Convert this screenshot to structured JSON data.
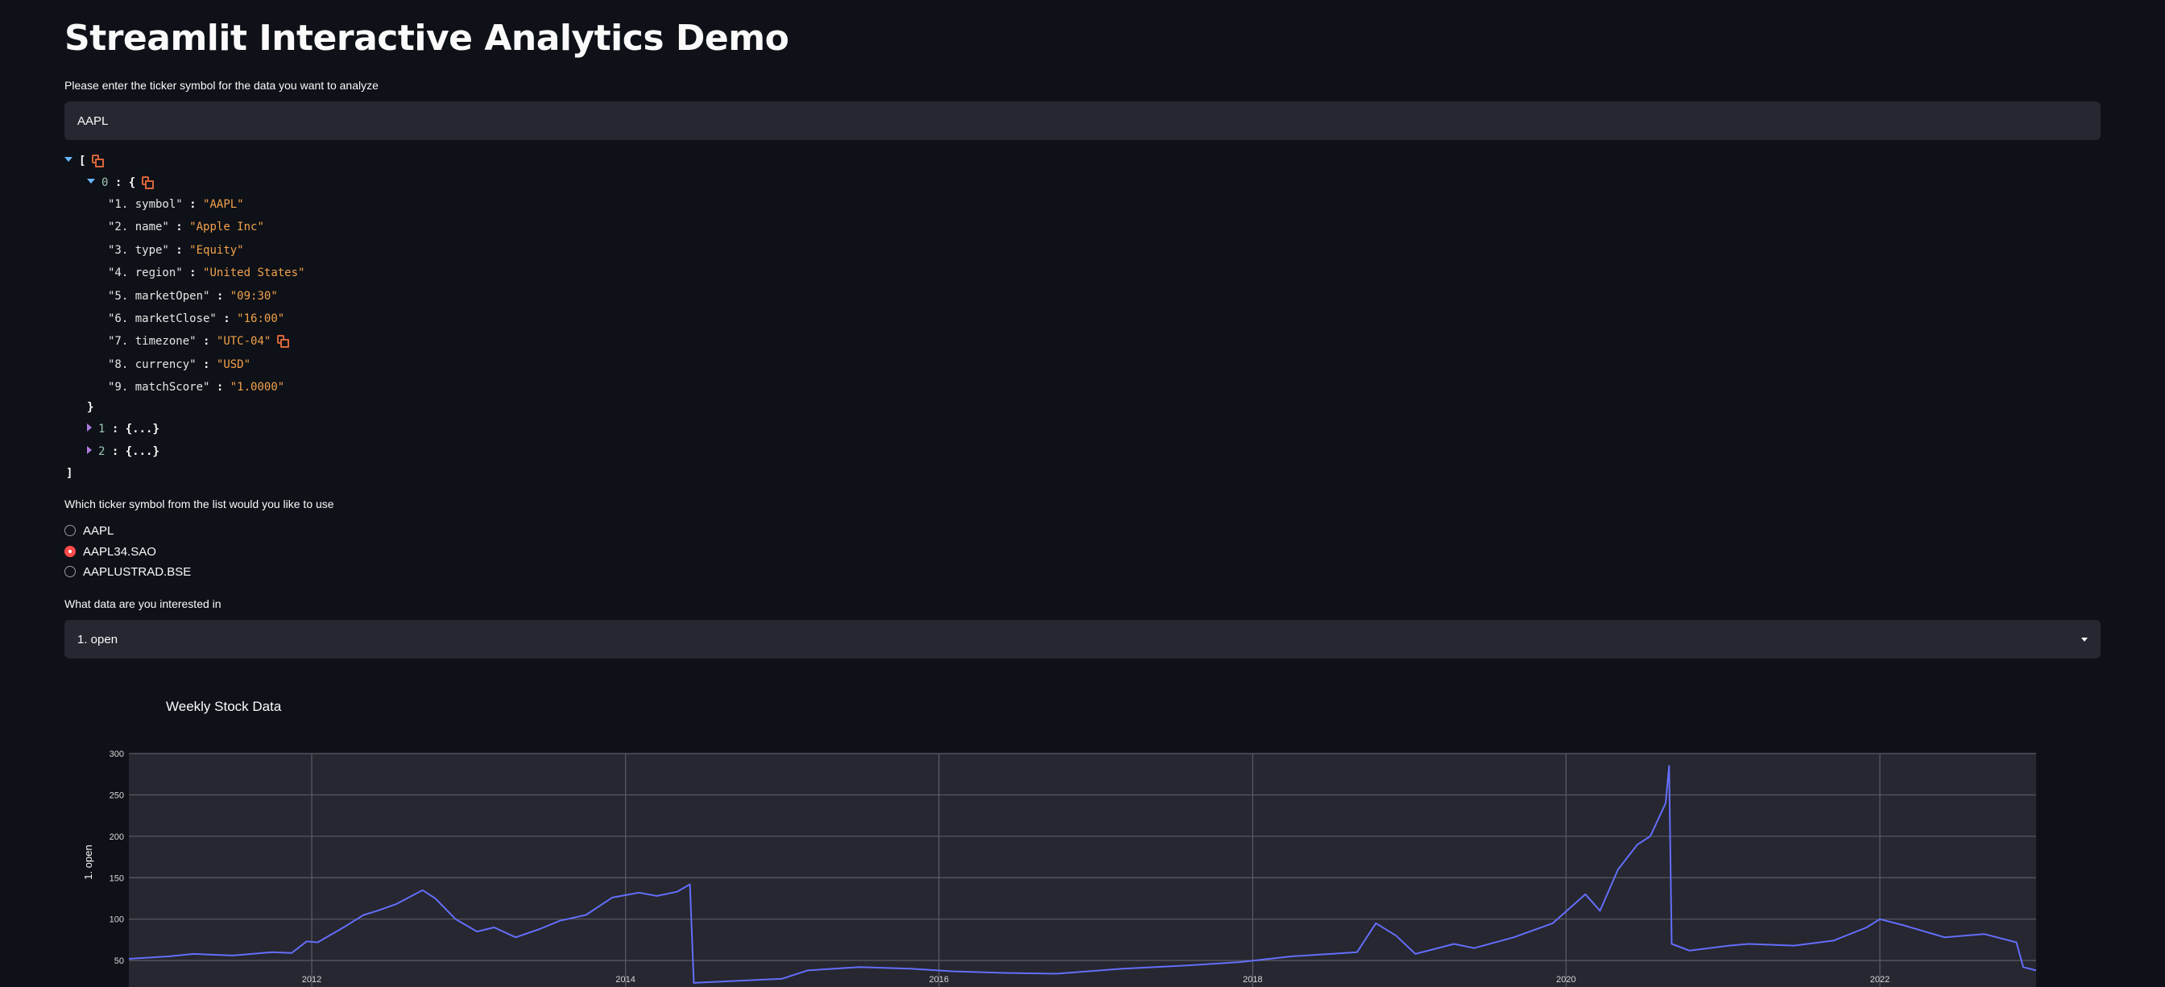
{
  "page": {
    "title": "Streamlit Interactive Analytics Demo"
  },
  "ticker_input": {
    "label": "Please enter the ticker symbol for the data you want to analyze",
    "value": "AAPL"
  },
  "json_view": {
    "open_bracket": "[",
    "close_bracket": "]",
    "item0_index": "0",
    "item0_open": "{",
    "item0_close": "}",
    "fields": [
      {
        "key": "\"1. symbol\"",
        "value": "\"AAPL\""
      },
      {
        "key": "\"2. name\"",
        "value": "\"Apple Inc\""
      },
      {
        "key": "\"3. type\"",
        "value": "\"Equity\""
      },
      {
        "key": "\"4. region\"",
        "value": "\"United States\""
      },
      {
        "key": "\"5. marketOpen\"",
        "value": "\"09:30\""
      },
      {
        "key": "\"6. marketClose\"",
        "value": "\"16:00\""
      },
      {
        "key": "\"7. timezone\"",
        "value": "\"UTC-04\""
      },
      {
        "key": "\"8. currency\"",
        "value": "\"USD\""
      },
      {
        "key": "\"9. matchScore\"",
        "value": "\"1.0000\""
      }
    ],
    "separator": ":",
    "collapsed_items": [
      {
        "index": "1",
        "preview": "{...}"
      },
      {
        "index": "2",
        "preview": "{...}"
      }
    ]
  },
  "ticker_choice": {
    "label": "Which ticker symbol from the list would you like to use",
    "options": [
      "AAPL",
      "AAPL34.SAO",
      "AAPLUSTRAD.BSE"
    ],
    "selected": "AAPL34.SAO"
  },
  "data_select": {
    "label": "What data are you interested in",
    "value": "1. open"
  },
  "colors": {
    "background": "#0e1117",
    "widget_bg": "#262730",
    "accent": "#ff4b4b",
    "line": "#636efa",
    "json_string": "#f2a14b",
    "copy_icon": "#d9653b"
  },
  "chart_data": {
    "type": "line",
    "title": "Weekly Stock Data",
    "xlabel": "",
    "ylabel": "1. open",
    "ylim": [
      18,
      300
    ],
    "yticks": [
      50,
      100,
      150,
      200,
      250,
      300
    ],
    "xticks": [
      "2012",
      "2014",
      "2016",
      "2018",
      "2020",
      "2022"
    ],
    "grid": true,
    "x_range": [
      "2010-11-01",
      "2022-12-31"
    ],
    "series": [
      {
        "points": [
          [
            "2010-11-01",
            52
          ],
          [
            "2011-02-01",
            55
          ],
          [
            "2011-04-01",
            58
          ],
          [
            "2011-07-01",
            56
          ],
          [
            "2011-10-01",
            60
          ],
          [
            "2011-11-15",
            59
          ],
          [
            "2011-12-20",
            73
          ],
          [
            "2012-01-15",
            72
          ],
          [
            "2012-03-15",
            90
          ],
          [
            "2012-05-01",
            105
          ],
          [
            "2012-06-01",
            110
          ],
          [
            "2012-07-15",
            118
          ],
          [
            "2012-09-15",
            135
          ],
          [
            "2012-10-15",
            125
          ],
          [
            "2012-12-01",
            100
          ],
          [
            "2013-01-20",
            85
          ],
          [
            "2013-03-01",
            90
          ],
          [
            "2013-04-20",
            78
          ],
          [
            "2013-06-15",
            88
          ],
          [
            "2013-08-01",
            98
          ],
          [
            "2013-10-01",
            105
          ],
          [
            "2013-12-01",
            126
          ],
          [
            "2014-02-01",
            132
          ],
          [
            "2014-03-15",
            128
          ],
          [
            "2014-05-01",
            133
          ],
          [
            "2014-05-31",
            142
          ],
          [
            "2014-06-09",
            23
          ],
          [
            "2014-09-01",
            25
          ],
          [
            "2015-01-01",
            28
          ],
          [
            "2015-03-01",
            38
          ],
          [
            "2015-07-01",
            42
          ],
          [
            "2015-11-01",
            40
          ],
          [
            "2016-02-01",
            37
          ],
          [
            "2016-06-01",
            35
          ],
          [
            "2016-10-01",
            34
          ],
          [
            "2017-03-01",
            40
          ],
          [
            "2017-08-01",
            44
          ],
          [
            "2017-12-01",
            48
          ],
          [
            "2018-04-01",
            55
          ],
          [
            "2018-09-01",
            60
          ],
          [
            "2018-10-15",
            95
          ],
          [
            "2018-12-01",
            80
          ],
          [
            "2019-01-15",
            58
          ],
          [
            "2019-04-15",
            70
          ],
          [
            "2019-06-01",
            65
          ],
          [
            "2019-09-01",
            78
          ],
          [
            "2019-12-01",
            95
          ],
          [
            "2020-02-15",
            130
          ],
          [
            "2020-03-20",
            110
          ],
          [
            "2020-05-01",
            160
          ],
          [
            "2020-06-15",
            190
          ],
          [
            "2020-07-15",
            200
          ],
          [
            "2020-08-20",
            240
          ],
          [
            "2020-08-28",
            285
          ],
          [
            "2020-09-03",
            70
          ],
          [
            "2020-10-15",
            62
          ],
          [
            "2021-01-15",
            68
          ],
          [
            "2021-03-01",
            70
          ],
          [
            "2021-06-15",
            68
          ],
          [
            "2021-09-15",
            74
          ],
          [
            "2021-12-01",
            90
          ],
          [
            "2022-01-01",
            100
          ],
          [
            "2022-03-01",
            92
          ],
          [
            "2022-06-01",
            78
          ],
          [
            "2022-09-01",
            82
          ],
          [
            "2022-11-15",
            72
          ],
          [
            "2022-12-01",
            42
          ],
          [
            "2022-12-31",
            38
          ]
        ]
      }
    ]
  }
}
